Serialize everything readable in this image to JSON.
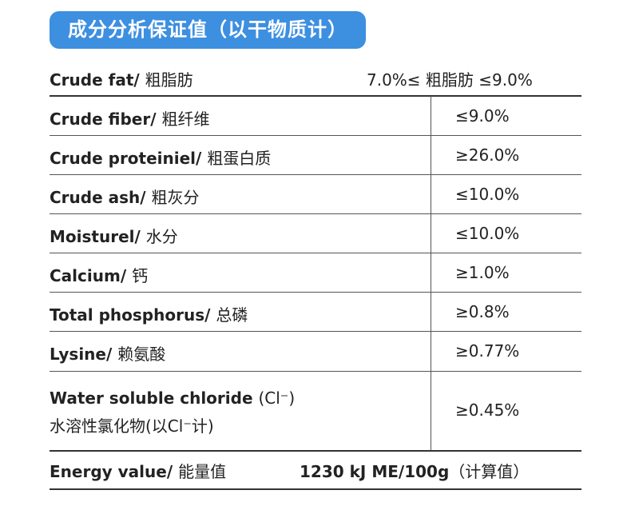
{
  "title": "成分分析保证值（以干物质计）",
  "rows": [
    {
      "en": "Crude fat/ ",
      "zh": "粗脂肪",
      "value": "7.0%≤ 粗脂肪 ≤9.0%"
    },
    {
      "en": "Crude fiber/ ",
      "zh": "粗纤维",
      "value": "≤9.0%"
    },
    {
      "en": "Crude proteiniel/ ",
      "zh": "粗蛋白质",
      "value": "≥26.0%"
    },
    {
      "en": "Crude ash/ ",
      "zh": "粗灰分",
      "value": "≤10.0%"
    },
    {
      "en": "Moisturel/ ",
      "zh": "水分",
      "value": "≤10.0%"
    },
    {
      "en": "Calcium/ ",
      "zh": "钙",
      "value": "≥1.0%"
    },
    {
      "en": "Total phosphorus/ ",
      "zh": "总磷",
      "value": "≥0.8%"
    },
    {
      "en": "Lysine/ ",
      "zh": "赖氨酸",
      "value": "≥0.77%"
    }
  ],
  "chloride": {
    "en": "Water soluble chloride ",
    "en_suffix": "(Cl⁻)",
    "zh": "水溶性氯化物(以Cl⁻计)",
    "value": "≥0.45%"
  },
  "energy": {
    "en": "Energy value/ ",
    "zh": "能量值",
    "value": "1230 kJ  ME/100g",
    "note": "（计算值）"
  }
}
